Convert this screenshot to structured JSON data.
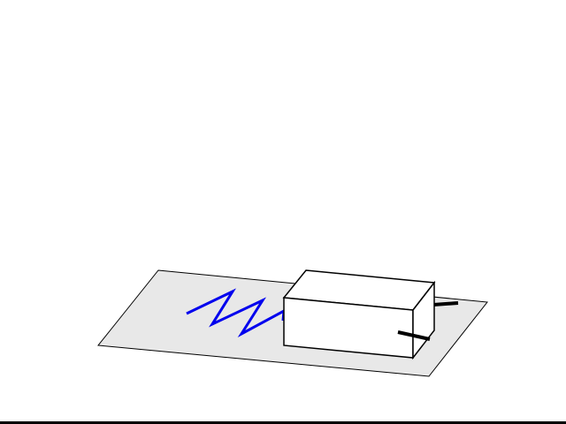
{
  "scene": {
    "description_type": "3d-mechanics-diagram",
    "components": [
      "ground-plane",
      "spring",
      "block",
      "axle-rod"
    ],
    "colors": {
      "background": "#ffffff",
      "ground_fill": "#e8e8e8",
      "ground_stroke": "#000000",
      "spring": "#0000ee",
      "block_fill": "#ffffff",
      "block_stroke": "#000000",
      "axle": "#000000",
      "bottom_edge": "#000000"
    }
  }
}
